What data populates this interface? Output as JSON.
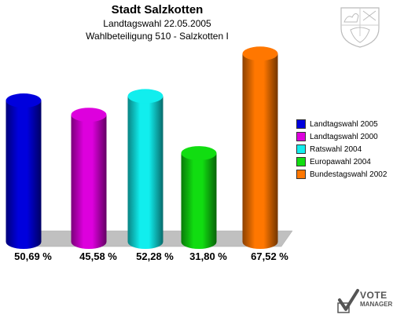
{
  "header": {
    "title": "Stadt Salzkotten",
    "subtitle1": "Landtagswahl 22.05.2005",
    "subtitle2": "Wahlbeteiligung 510 - Salzkotten I"
  },
  "chart_data": {
    "type": "bar",
    "title": "Stadt Salzkotten",
    "subtitle": "Landtagswahl 22.05.2005 / Wahlbeteiligung 510 - Salzkotten I",
    "categories": [
      "Landtagswahl 2005",
      "Landtagswahl 2000",
      "Ratswahl 2004",
      "Europawahl 2004",
      "Bundestagswahl 2002"
    ],
    "values": [
      50.69,
      45.58,
      52.28,
      31.8,
      67.52
    ],
    "value_labels": [
      "50,69 %",
      "45,58 %",
      "52,28 %",
      "31,80 %",
      "67,52 %"
    ],
    "colors": [
      "#0000dd",
      "#dd00dd",
      "#11eeee",
      "#11dd11",
      "#ff7700"
    ],
    "ylim": [
      0,
      70
    ],
    "grid": false,
    "legend_position": "right"
  },
  "legend": {
    "items": [
      {
        "label": "Landtagswahl 2005",
        "color": "#0000dd"
      },
      {
        "label": "Landtagswahl 2000",
        "color": "#dd00dd"
      },
      {
        "label": "Ratswahl 2004",
        "color": "#11eeee"
      },
      {
        "label": "Europawahl 2004",
        "color": "#11dd11"
      },
      {
        "label": "Bundestagswahl 2002",
        "color": "#ff7700"
      }
    ]
  },
  "logo": {
    "line1": "VOTE",
    "line2": "MANAGER",
    "icon": "vote-check-icon"
  },
  "crest": {
    "icon": "coat-of-arms-icon"
  }
}
